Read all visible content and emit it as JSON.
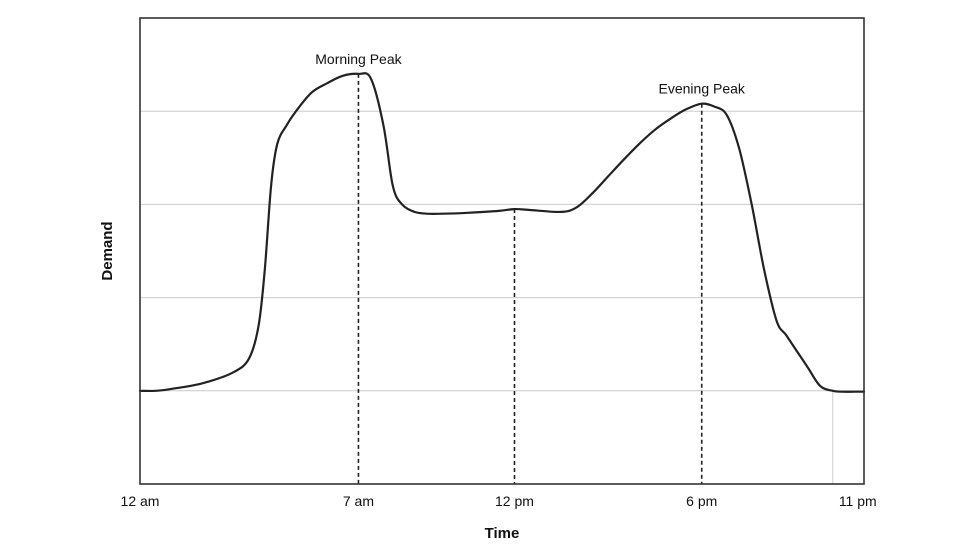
{
  "chart_data": {
    "type": "line",
    "title": "",
    "xlabel": "Time",
    "ylabel": "Demand",
    "x_tick_labels": [
      {
        "label": "12 am",
        "hour": 0
      },
      {
        "label": "7 am",
        "hour": 7
      },
      {
        "label": "12 pm",
        "hour": 12
      },
      {
        "label": "6 pm",
        "hour": 18
      },
      {
        "label": "11 pm",
        "hour": 23
      }
    ],
    "xlim": [
      0,
      23.2
    ],
    "ylim": [
      0,
      5
    ],
    "y_gridlines": [
      1,
      2,
      3,
      4
    ],
    "y_tick_labels": [],
    "grid": true,
    "legend": "none",
    "series": [
      {
        "x": [
          0,
          0.5,
          1.0,
          2.0,
          3.0,
          3.5,
          3.8,
          4.0,
          4.2,
          4.4,
          4.7,
          5.0,
          5.5,
          6.0,
          6.5,
          7.0,
          7.4,
          7.8,
          8.1,
          8.4,
          8.8,
          9.2,
          9.7,
          10.5,
          11.5,
          12.0,
          12.5,
          13.5,
          14.0,
          14.5,
          15.0,
          15.5,
          16.0,
          16.5,
          17.0,
          17.5,
          18.0,
          18.4,
          18.8,
          19.2,
          19.6,
          20.0,
          20.4,
          20.7,
          21.0,
          21.4,
          21.8,
          22.2,
          22.5,
          22.9,
          23.2
        ],
        "y": [
          1.0,
          1.0,
          1.02,
          1.08,
          1.2,
          1.35,
          1.7,
          2.3,
          3.2,
          3.65,
          3.85,
          4.0,
          4.2,
          4.3,
          4.38,
          4.4,
          4.35,
          3.85,
          3.2,
          3.0,
          2.92,
          2.9,
          2.9,
          2.91,
          2.93,
          2.95,
          2.94,
          2.92,
          2.97,
          3.12,
          3.3,
          3.48,
          3.65,
          3.8,
          3.92,
          4.02,
          4.08,
          4.05,
          3.96,
          3.6,
          3.0,
          2.3,
          1.75,
          1.6,
          1.45,
          1.25,
          1.05,
          1.0,
          0.99,
          0.99,
          0.99
        ]
      }
    ],
    "markers": [
      {
        "hour": 7,
        "value": 4.4
      },
      {
        "hour": 12,
        "value": 2.95
      },
      {
        "hour": 18,
        "value": 4.08
      },
      {
        "hour": 22.2,
        "value": 1.0
      }
    ],
    "annotations": [
      {
        "text": "Morning Peak",
        "hour": 7
      },
      {
        "text": "Evening Peak",
        "hour": 18
      }
    ]
  },
  "colors": {
    "line": "#222222",
    "frame": "#333333",
    "grid": "#cccccc",
    "marker_line": "#222222",
    "text": "#111111"
  }
}
